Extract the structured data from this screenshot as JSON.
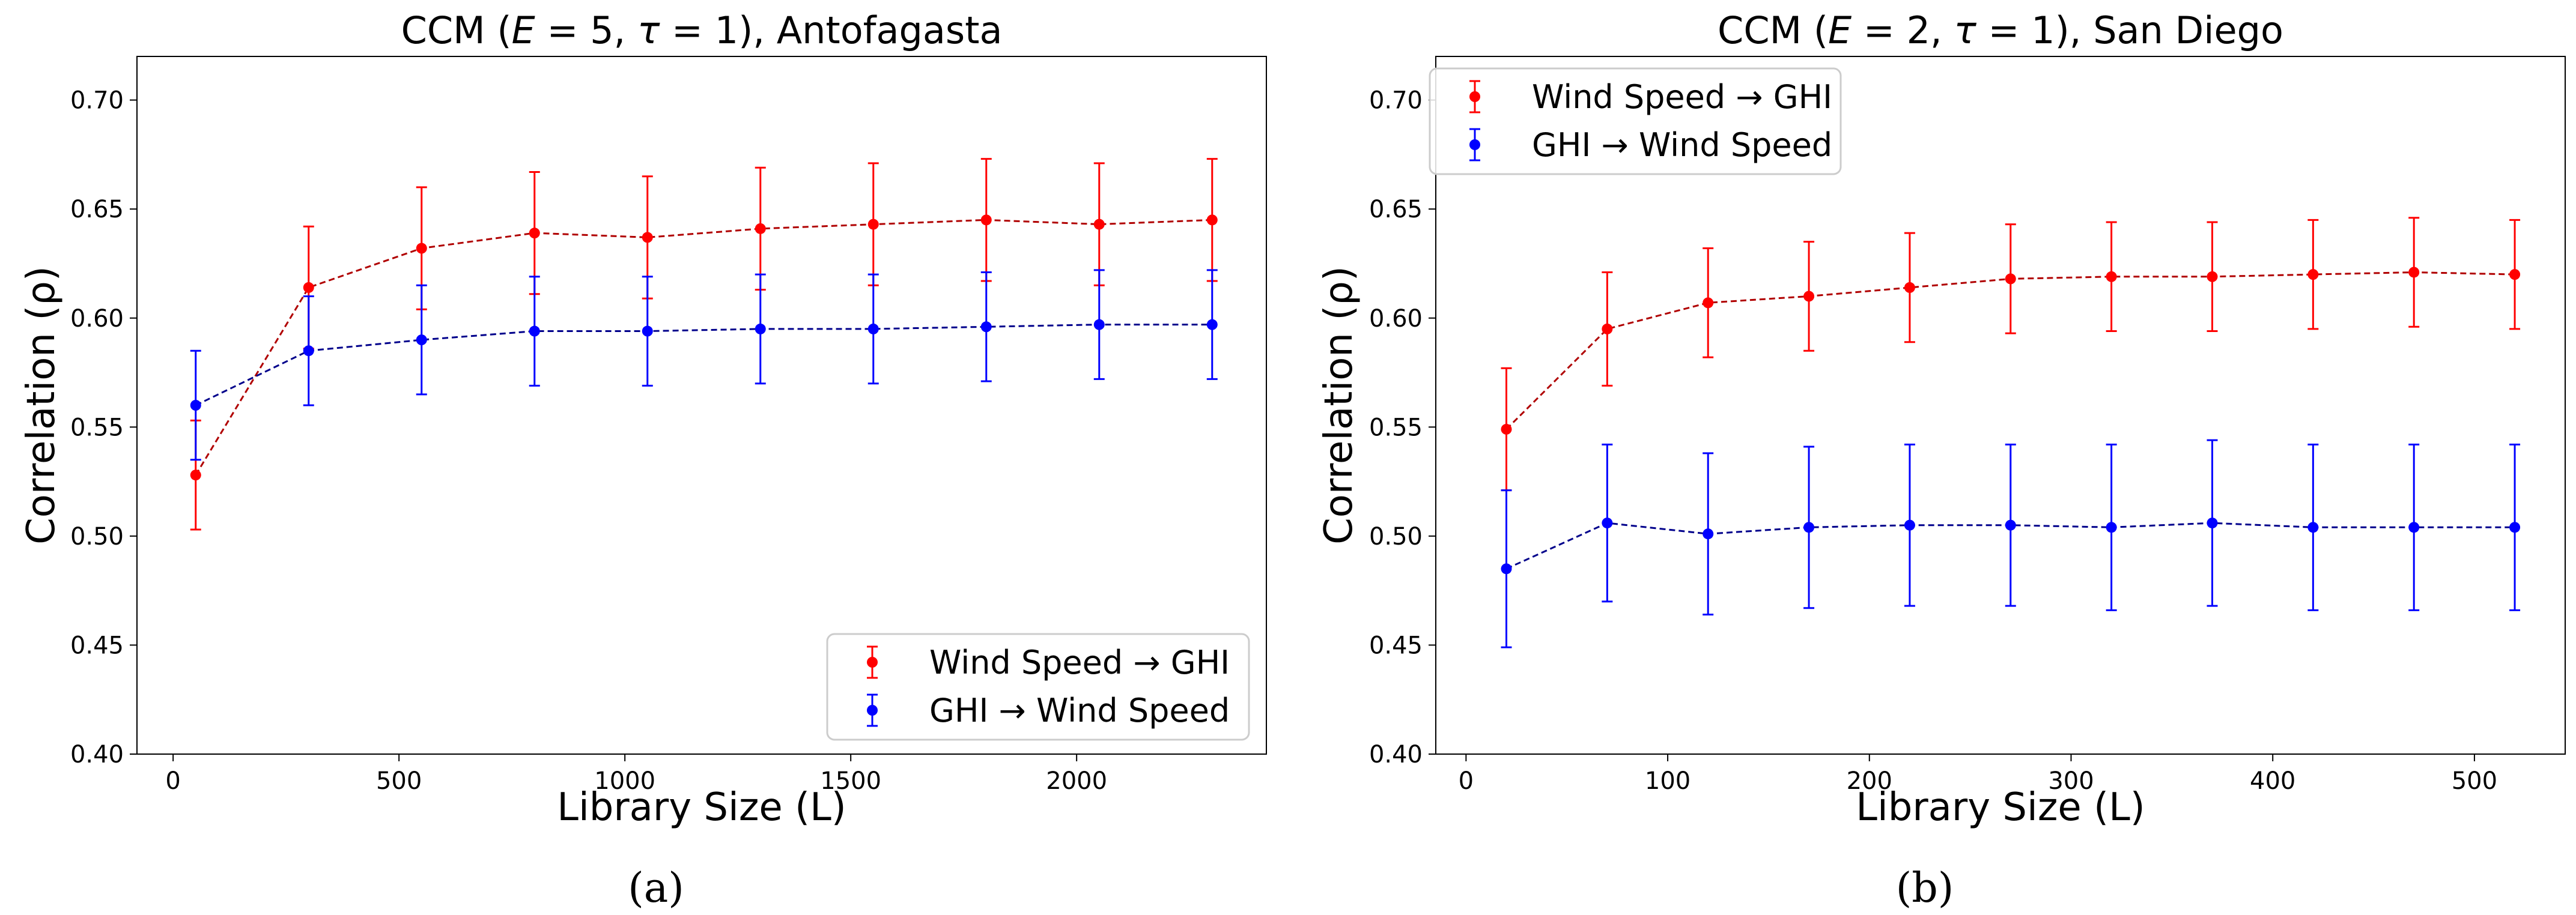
{
  "chart_data": [
    {
      "type": "line",
      "panel_label": "(a)",
      "title": "CCM (E = 5, τ = 1), Antofagasta",
      "title_parts": {
        "pre": "CCM (",
        "E_sym": "E",
        "E_rest": " = 5, ",
        "tau_sym": "τ",
        "tau_rest": " = 1), Antofagasta"
      },
      "xlabel": "Library Size (L)",
      "ylabel": "Correlation (ρ)",
      "xlim": [
        -80,
        2420
      ],
      "ylim": [
        0.4,
        0.72
      ],
      "xticks": [
        0,
        500,
        1000,
        1500,
        2000
      ],
      "yticks": [
        0.4,
        0.45,
        0.5,
        0.55,
        0.6,
        0.65,
        0.7
      ],
      "ytick_labels": [
        "0.40",
        "0.45",
        "0.50",
        "0.55",
        "0.60",
        "0.65",
        "0.70"
      ],
      "legend_position": "bottom-right",
      "x": [
        50,
        300,
        550,
        800,
        1050,
        1300,
        1550,
        1800,
        2050,
        2300
      ],
      "series": [
        {
          "name": "Wind Speed → GHI",
          "color": "#ff0000",
          "line_color": "#b00000",
          "values": [
            0.528,
            0.614,
            0.632,
            0.639,
            0.637,
            0.641,
            0.643,
            0.645,
            0.643,
            0.645
          ],
          "errors": [
            0.025,
            0.028,
            0.028,
            0.028,
            0.028,
            0.028,
            0.028,
            0.028,
            0.028,
            0.028
          ]
        },
        {
          "name": "GHI → Wind Speed",
          "color": "#0000ff",
          "line_color": "#00008b",
          "values": [
            0.56,
            0.585,
            0.59,
            0.594,
            0.594,
            0.595,
            0.595,
            0.596,
            0.597,
            0.597
          ],
          "errors": [
            0.025,
            0.025,
            0.025,
            0.025,
            0.025,
            0.025,
            0.025,
            0.025,
            0.025,
            0.025
          ]
        }
      ]
    },
    {
      "type": "line",
      "panel_label": "(b)",
      "title": "CCM (E = 2, τ = 1), San Diego",
      "title_parts": {
        "pre": "CCM (",
        "E_sym": "E",
        "E_rest": " = 2, ",
        "tau_sym": "τ",
        "tau_rest": " = 1), San Diego"
      },
      "xlabel": "Library Size (L)",
      "ylabel": "Correlation (ρ)",
      "xlim": [
        -15,
        545
      ],
      "ylim": [
        0.4,
        0.72
      ],
      "xticks": [
        0,
        100,
        200,
        300,
        400,
        500
      ],
      "yticks": [
        0.4,
        0.45,
        0.5,
        0.55,
        0.6,
        0.65,
        0.7
      ],
      "ytick_labels": [
        "0.40",
        "0.45",
        "0.50",
        "0.55",
        "0.60",
        "0.65",
        "0.70"
      ],
      "legend_position": "top-left",
      "x": [
        20,
        70,
        120,
        170,
        220,
        270,
        320,
        370,
        420,
        470,
        520
      ],
      "series": [
        {
          "name": "Wind Speed → GHI",
          "color": "#ff0000",
          "line_color": "#b00000",
          "values": [
            0.549,
            0.595,
            0.607,
            0.61,
            0.614,
            0.618,
            0.619,
            0.619,
            0.62,
            0.621,
            0.62
          ],
          "errors": [
            0.028,
            0.026,
            0.025,
            0.025,
            0.025,
            0.025,
            0.025,
            0.025,
            0.025,
            0.025,
            0.025
          ]
        },
        {
          "name": "GHI → Wind Speed",
          "color": "#0000ff",
          "line_color": "#00008b",
          "values": [
            0.485,
            0.506,
            0.501,
            0.504,
            0.505,
            0.505,
            0.504,
            0.506,
            0.504,
            0.504,
            0.504
          ],
          "errors": [
            0.036,
            0.036,
            0.037,
            0.037,
            0.037,
            0.037,
            0.038,
            0.038,
            0.038,
            0.038,
            0.038
          ]
        }
      ]
    }
  ]
}
